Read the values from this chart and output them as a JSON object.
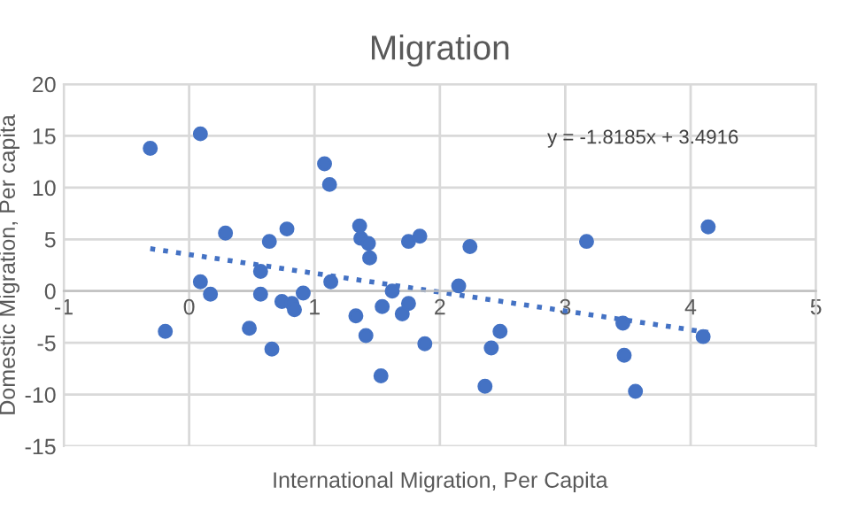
{
  "chart_data": {
    "type": "scatter",
    "title": "Migration",
    "xlabel": "International Migration, Per Capita",
    "ylabel": "Domestic Migration, Per capita",
    "xlim": [
      -1,
      5
    ],
    "xticks": [
      -1,
      0,
      1,
      2,
      3,
      4,
      5
    ],
    "ylim": [
      -15,
      20
    ],
    "yticks": [
      -15,
      -10,
      -5,
      0,
      5,
      10,
      15,
      20
    ],
    "grid": true,
    "marker": "circle",
    "series": [
      {
        "color": "#4472c4",
        "x": [
          -0.31,
          0.09,
          0.29,
          0.09,
          0.17,
          -0.19,
          0.48,
          0.57,
          0.57,
          0.64,
          0.66,
          0.78,
          0.74,
          0.82,
          0.84,
          0.91,
          1.08,
          1.12,
          1.13,
          1.36,
          1.37,
          1.43,
          1.44,
          1.33,
          1.41,
          1.54,
          1.53,
          1.62,
          1.7,
          1.75,
          1.75,
          1.84,
          1.88,
          2.24,
          2.15,
          2.48,
          2.41,
          2.36,
          3.17,
          3.46,
          3.47,
          3.56,
          4.1,
          4.14
        ],
        "values": [
          13.8,
          15.2,
          5.6,
          0.9,
          -0.3,
          -3.9,
          -3.6,
          1.9,
          -0.3,
          4.8,
          -5.6,
          6.0,
          -1.0,
          -1.2,
          -1.8,
          -0.2,
          12.3,
          10.3,
          0.9,
          6.3,
          5.1,
          4.6,
          3.2,
          -2.4,
          -4.3,
          -1.5,
          -8.2,
          0.0,
          -2.2,
          -1.2,
          4.8,
          5.3,
          -5.1,
          4.3,
          0.5,
          -3.9,
          -5.5,
          -9.2,
          4.8,
          -3.1,
          -6.2,
          -9.7,
          -4.4,
          6.2
        ]
      },
      {
        "type": "line",
        "color": "#4472c4",
        "line_style": "dotted",
        "marker": "none",
        "x": [
          -0.31,
          4.14
        ],
        "values": [
          4.1,
          -4.0
        ]
      }
    ],
    "annotations": [
      "y = -1.8185x + 3.4916"
    ]
  }
}
